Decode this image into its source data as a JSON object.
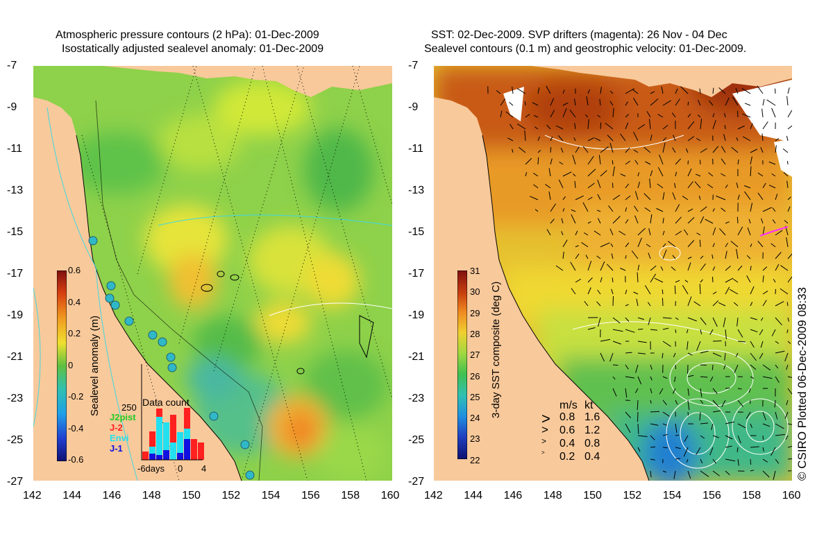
{
  "left_panel": {
    "title_line1": "Atmospheric pressure contours (2 hPa): 01-Dec-2009",
    "title_line2": "Isostatically adjusted sealevel anomaly: 01-Dec-2009",
    "y_ticks": [
      "-7",
      "-9",
      "-11",
      "-13",
      "-15",
      "-17",
      "-19",
      "-21",
      "-23",
      "-25",
      "-27"
    ],
    "x_ticks": [
      "142",
      "144",
      "146",
      "148",
      "150",
      "152",
      "154",
      "156",
      "158",
      "160"
    ],
    "colorbar": {
      "label": "Sealevel anomaly (m)",
      "ticks": [
        "0.6",
        "0.4",
        "0.2",
        "0",
        "-0.2",
        "-0.4",
        "-0.6"
      ],
      "range": [
        -0.6,
        0.6
      ]
    },
    "data_count": {
      "title": "Data count",
      "max_label": "250",
      "x_labels": [
        "-6days",
        "0",
        "4"
      ],
      "legend": [
        {
          "name": "J2pist",
          "color": "#22cc22"
        },
        {
          "name": "J-2",
          "color": "#ff2020"
        },
        {
          "name": "Envi",
          "color": "#22e0f0"
        },
        {
          "name": "J-1",
          "color": "#1010e0"
        }
      ]
    }
  },
  "right_panel": {
    "title_line1": "SST: 02-Dec-2009. SVP drifters (magenta): 26 Nov - 04 Dec",
    "title_line2": "Sealevel contours (0.1 m) and geostrophic velocity: 01-Dec-2009.",
    "y_ticks": [
      "-7",
      "-9",
      "-11",
      "-13",
      "-15",
      "-17",
      "-19",
      "-21",
      "-23",
      "-25",
      "-27"
    ],
    "x_ticks": [
      "142",
      "144",
      "146",
      "148",
      "150",
      "152",
      "154",
      "156",
      "158",
      "160"
    ],
    "colorbar": {
      "label": "3-day SST composite (deg C)",
      "ticks": [
        "31",
        "30",
        "29",
        "28",
        "27",
        "26",
        "25",
        "24",
        "23",
        "22"
      ],
      "range": [
        22,
        31
      ]
    },
    "velocity_legend": {
      "header_ms": "m/s",
      "header_kt": "kt",
      "rows": [
        {
          "ms": "0.8",
          "kt": "1.6"
        },
        {
          "ms": "0.6",
          "kt": "1.2"
        },
        {
          "ms": "0.4",
          "kt": "0.8"
        },
        {
          "ms": "0.2",
          "kt": "0.4"
        }
      ]
    }
  },
  "credit": "© CSIRO Plotted 06-Dec-2009 08:33",
  "colors": {
    "land": "#f8c99b",
    "cloud": "#ffffff",
    "contour_cyan": "#40d8e0"
  }
}
